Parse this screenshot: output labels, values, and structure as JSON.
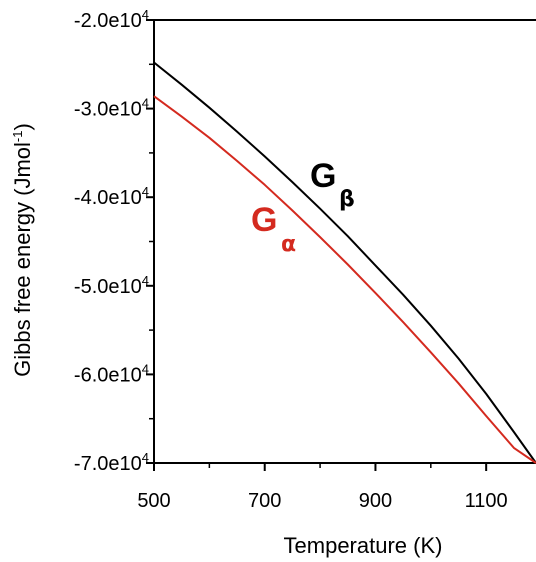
{
  "chart_data": {
    "type": "line",
    "title": "",
    "xlabel": "Temperature (K)",
    "ylabel": "Gibbs free energy (Jmol",
    "ylabel_superscript": "-1",
    "ylabel_suffix": ")",
    "xlim": [
      500,
      1190
    ],
    "ylim": [
      -70000,
      -20000
    ],
    "x_ticks": [
      500,
      700,
      900,
      1100
    ],
    "x_tick_labels": [
      "500",
      "700",
      "900",
      "1100"
    ],
    "y_ticks": [
      -20000,
      -30000,
      -40000,
      -50000,
      -60000,
      -70000
    ],
    "y_tick_labels": [
      {
        "mantissa": "-2.0e10",
        "exp": "4"
      },
      {
        "mantissa": "-3.0e10",
        "exp": "4"
      },
      {
        "mantissa": "-4.0e10",
        "exp": "4"
      },
      {
        "mantissa": "-5.0e10",
        "exp": "4"
      },
      {
        "mantissa": "-6.0e10",
        "exp": "4"
      },
      {
        "mantissa": "-7.0e10",
        "exp": "4"
      }
    ],
    "grid": false,
    "series": [
      {
        "name": "G",
        "sub": "β",
        "color": "#000000",
        "x": [
          500,
          550,
          600,
          650,
          700,
          750,
          800,
          850,
          900,
          950,
          1000,
          1050,
          1100,
          1150,
          1190
        ],
        "values": [
          -24800,
          -27300,
          -29900,
          -32600,
          -35400,
          -38300,
          -41300,
          -44400,
          -47700,
          -51000,
          -54500,
          -58200,
          -62200,
          -66500,
          -70000
        ]
      },
      {
        "name": "G",
        "sub": "α",
        "color": "#d42a1f",
        "x": [
          500,
          550,
          600,
          650,
          700,
          750,
          800,
          850,
          900,
          950,
          1000,
          1050,
          1100,
          1150,
          1190
        ],
        "values": [
          -28600,
          -30900,
          -33300,
          -35900,
          -38600,
          -41500,
          -44500,
          -47600,
          -50800,
          -54100,
          -57500,
          -61000,
          -64700,
          -68300,
          -70000
        ]
      }
    ]
  }
}
